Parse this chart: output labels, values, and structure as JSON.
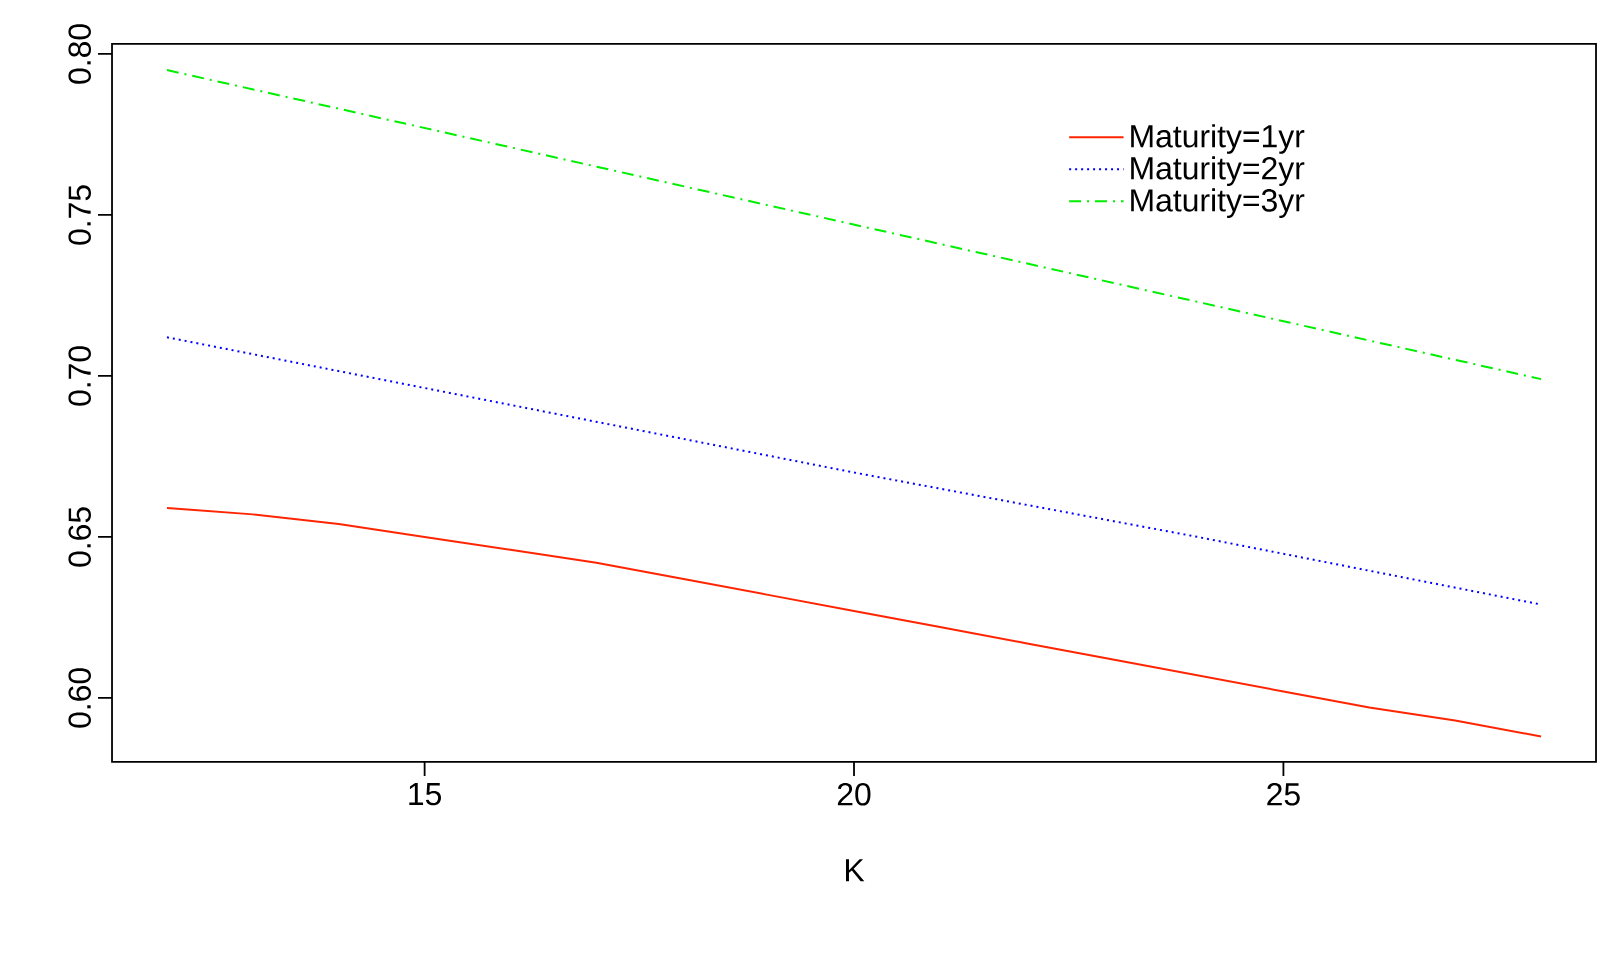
{
  "chart_data": {
    "type": "line",
    "xlabel": "K",
    "x": [
      12,
      13,
      14,
      15,
      16,
      17,
      18,
      19,
      20,
      21,
      22,
      23,
      24,
      25,
      26,
      27,
      28
    ],
    "series": [
      {
        "name": "Maturity=1yr",
        "color": "#ff2500",
        "line_style": "solid",
        "values": [
          0.659,
          0.657,
          0.654,
          0.65,
          0.646,
          0.642,
          0.637,
          0.632,
          0.627,
          0.622,
          0.617,
          0.612,
          0.607,
          0.602,
          0.597,
          0.593,
          0.588
        ]
      },
      {
        "name": "Maturity=2yr",
        "color": "#0000ff",
        "line_style": "dotted",
        "x": [
          12,
          16,
          20,
          24,
          28
        ],
        "values": [
          0.712,
          0.691,
          0.67,
          0.65,
          0.629
        ]
      },
      {
        "name": "Maturity=3yr",
        "color": "#00ee00",
        "line_style": "dashed",
        "x": [
          12,
          16,
          20,
          24,
          28
        ],
        "values": [
          0.795,
          0.771,
          0.747,
          0.723,
          0.699
        ]
      }
    ],
    "xlim": [
      11.36,
      28.64
    ],
    "ylim": [
      0.5801,
      0.8031
    ],
    "xticks": [
      15,
      20,
      25
    ],
    "yticks": [
      {
        "value": 0.6,
        "label": "0.60"
      },
      {
        "value": 0.65,
        "label": "0.65"
      },
      {
        "value": 0.7,
        "label": "0.70"
      },
      {
        "value": 0.75,
        "label": "0.75"
      },
      {
        "value": 0.8,
        "label": "0.80"
      }
    ],
    "grid": false,
    "legend": "top right",
    "marker": "none"
  }
}
